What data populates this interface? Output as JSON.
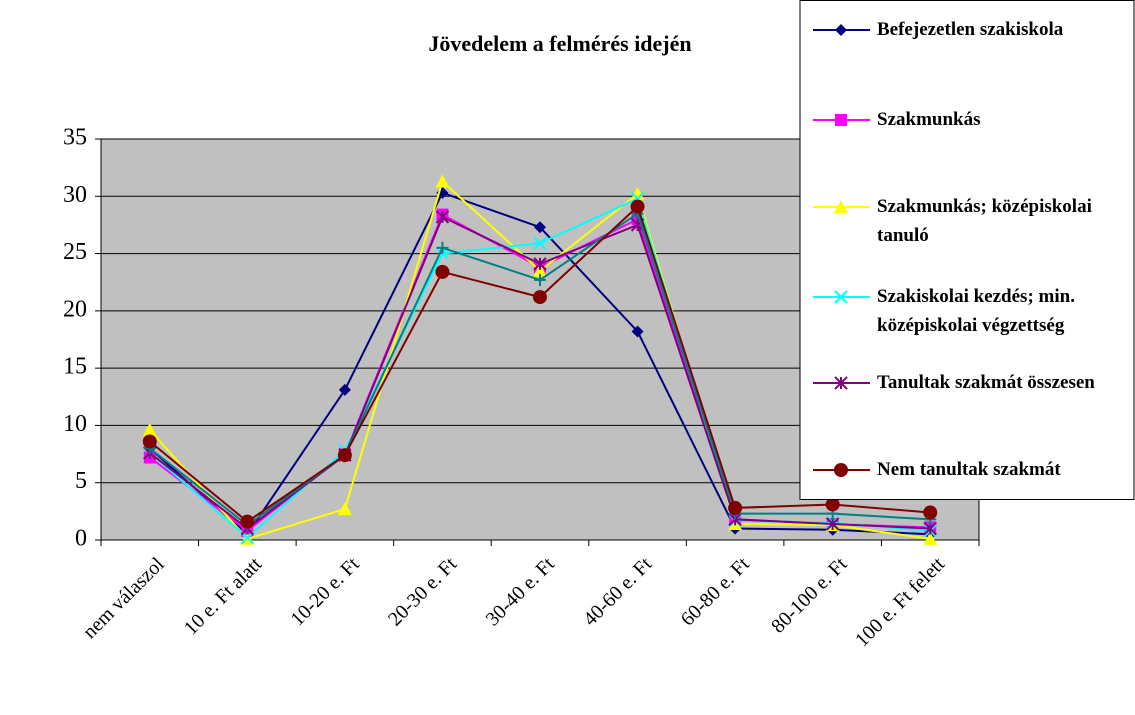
{
  "chart_data": {
    "type": "line",
    "title": "Jövedelem a felmérés idején",
    "categories": [
      "nem válaszol",
      "10 e. Ft alatt",
      "10-20 e. Ft",
      "20-30 e. Ft",
      "30-40 e. Ft",
      "40-60 e. Ft",
      "60-80 e. Ft",
      "80-100 e. Ft",
      "100 e. Ft felett"
    ],
    "ylim": [
      0,
      35
    ],
    "yticks": [
      0,
      5,
      10,
      15,
      20,
      25,
      30,
      35
    ],
    "grid": true,
    "legend": "right",
    "series": [
      {
        "name": "Befejezetlen szakiskola",
        "color": "#000080",
        "marker": "diamond",
        "values": [
          8.0,
          0.5,
          13.1,
          30.3,
          27.3,
          18.2,
          1.0,
          0.9,
          0.5
        ]
      },
      {
        "name": "Szakmunkás",
        "color": "#FF00FF",
        "marker": "square",
        "values": [
          7.2,
          0.8,
          7.5,
          28.4,
          23.8,
          28.0,
          1.8,
          1.4,
          1.1
        ]
      },
      {
        "name": "Szakmunkás; középiskolai tanuló",
        "color": "#FFFF00",
        "marker": "triangle",
        "values": [
          9.6,
          0.1,
          2.7,
          31.3,
          23.5,
          30.2,
          1.4,
          1.3,
          0.1
        ]
      },
      {
        "name": "Szakiskolai kezdés; min. középiskolai végzettség",
        "color": "#00FFFF",
        "marker": "x",
        "values": [
          7.6,
          0.2,
          7.8,
          25.0,
          25.9,
          29.8,
          1.7,
          1.5,
          0.8
        ]
      },
      {
        "name": "Tanultak szakmát összesen",
        "color": "#800080",
        "marker": "star",
        "values": [
          7.6,
          1.0,
          7.4,
          28.2,
          24.1,
          27.5,
          1.8,
          1.4,
          1.0
        ]
      },
      {
        "color": "#008080",
        "marker": "plus",
        "values": [
          8.0,
          1.3,
          7.4,
          25.5,
          22.7,
          28.5,
          2.3,
          2.3,
          1.8
        ]
      },
      {
        "name": "Nem tanultak szakmát",
        "color": "#800000",
        "marker": "circle",
        "values": [
          8.6,
          1.6,
          7.4,
          23.4,
          21.2,
          29.1,
          2.8,
          3.1,
          2.4
        ]
      }
    ]
  }
}
